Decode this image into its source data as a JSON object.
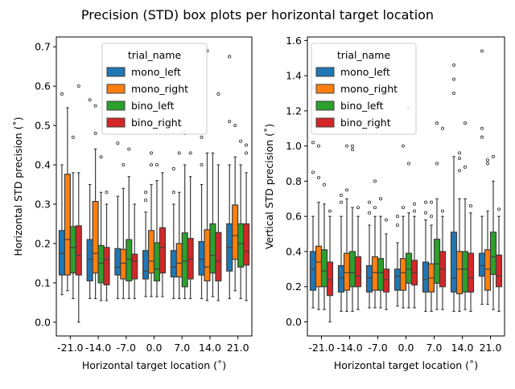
{
  "chart_data": {
    "title": "Precision (STD) box plots per horizontal target location",
    "type": "box",
    "legend": {
      "title": "trial_name",
      "placement": "top-center",
      "entries": [
        "mono_left",
        "mono_right",
        "bino_left",
        "bino_right"
      ]
    },
    "colors": {
      "mono_left": "#1f77b4",
      "mono_right": "#ff7f0e",
      "bino_left": "#2ca02c",
      "bino_right": "#d62728",
      "edge": "#3d3d3d"
    },
    "categories": [
      "-21.0",
      "-14.0",
      "-7.0",
      "0.0",
      "7.0",
      "14.0",
      "21.0"
    ],
    "panels": [
      {
        "ylabel": "Horizontal STD precision (˚)",
        "xlabel": "Horizontal target location (˚)",
        "ylim": [
          -0.035,
          0.725
        ],
        "yticks": [
          0.0,
          0.1,
          0.2,
          0.3,
          0.4,
          0.5,
          0.6,
          0.7
        ],
        "ytick_labels": [
          "0.0",
          "0.1",
          "0.2",
          "0.3",
          "0.4",
          "0.5",
          "0.6",
          "0.7"
        ],
        "series": [
          {
            "name": "mono_left",
            "boxes": [
              {
                "wlo": 0.07,
                "q1": 0.12,
                "med": 0.175,
                "q3": 0.233,
                "whi": 0.4,
                "out": [
                  0.58
                ]
              },
              {
                "wlo": 0.06,
                "q1": 0.105,
                "med": 0.16,
                "q3": 0.21,
                "whi": 0.35,
                "out": [
                  0.565
                ]
              },
              {
                "wlo": 0.06,
                "q1": 0.12,
                "med": 0.14,
                "q3": 0.187,
                "whi": 0.32,
                "out": [
                  0.455
                ]
              },
              {
                "wlo": 0.065,
                "q1": 0.11,
                "med": 0.13,
                "q3": 0.182,
                "whi": 0.28,
                "out": [
                  0.31,
                  0.33
                ]
              },
              {
                "wlo": 0.06,
                "q1": 0.115,
                "med": 0.14,
                "q3": 0.182,
                "whi": 0.3,
                "out": [
                  0.33,
                  0.39
                ]
              },
              {
                "wlo": 0.06,
                "q1": 0.12,
                "med": 0.16,
                "q3": 0.205,
                "whi": 0.35,
                "out": [
                  0.4,
                  0.47
                ]
              },
              {
                "wlo": 0.06,
                "q1": 0.13,
                "med": 0.19,
                "q3": 0.25,
                "whi": 0.4,
                "out": [
                  0.51,
                  0.675
                ]
              }
            ]
          },
          {
            "name": "mono_right",
            "boxes": [
              {
                "wlo": 0.08,
                "q1": 0.12,
                "med": 0.21,
                "q3": 0.376,
                "whi": 0.545,
                "out": []
              },
              {
                "wlo": 0.06,
                "q1": 0.125,
                "med": 0.175,
                "q3": 0.307,
                "whi": 0.44,
                "out": [
                  0.48,
                  0.55
                ]
              },
              {
                "wlo": 0.06,
                "q1": 0.11,
                "med": 0.15,
                "q3": 0.185,
                "whi": 0.34,
                "out": [
                  0.4
                ]
              },
              {
                "wlo": 0.065,
                "q1": 0.125,
                "med": 0.155,
                "q3": 0.233,
                "whi": 0.35,
                "out": [
                  0.4,
                  0.43
                ]
              },
              {
                "wlo": 0.06,
                "q1": 0.115,
                "med": 0.15,
                "q3": 0.2,
                "whi": 0.33,
                "out": [
                  0.43,
                  0.5
                ]
              },
              {
                "wlo": 0.055,
                "q1": 0.105,
                "med": 0.14,
                "q3": 0.235,
                "whi": 0.43,
                "out": [
                  0.69
                ]
              },
              {
                "wlo": 0.08,
                "q1": 0.16,
                "med": 0.22,
                "q3": 0.298,
                "whi": 0.42,
                "out": [
                  0.5
                ]
              }
            ]
          },
          {
            "name": "bino_left",
            "boxes": [
              {
                "wlo": 0.06,
                "q1": 0.125,
                "med": 0.19,
                "q3": 0.243,
                "whi": 0.38,
                "out": [
                  0.47
                ]
              },
              {
                "wlo": 0.055,
                "q1": 0.1,
                "med": 0.15,
                "q3": 0.195,
                "whi": 0.33,
                "out": [
                  0.42
                ]
              },
              {
                "wlo": 0.06,
                "q1": 0.105,
                "med": 0.16,
                "q3": 0.21,
                "whi": 0.37,
                "out": [
                  0.44
                ]
              },
              {
                "wlo": 0.065,
                "q1": 0.105,
                "med": 0.135,
                "q3": 0.202,
                "whi": 0.36,
                "out": [
                  0.4
                ]
              },
              {
                "wlo": 0.06,
                "q1": 0.09,
                "med": 0.155,
                "q3": 0.227,
                "whi": 0.4,
                "out": [
                  0.48
                ]
              },
              {
                "wlo": 0.065,
                "q1": 0.125,
                "med": 0.17,
                "q3": 0.25,
                "whi": 0.43,
                "out": []
              },
              {
                "wlo": 0.06,
                "q1": 0.14,
                "med": 0.2,
                "q3": 0.25,
                "whi": 0.4,
                "out": [
                  0.46
                ]
              }
            ]
          },
          {
            "name": "bino_right",
            "boxes": [
              {
                "wlo": 0.0,
                "q1": 0.12,
                "med": 0.17,
                "q3": 0.245,
                "whi": 0.38,
                "out": [
                  0.6
                ]
              },
              {
                "wlo": 0.055,
                "q1": 0.095,
                "med": 0.16,
                "q3": 0.19,
                "whi": 0.3,
                "out": [
                  0.33
                ]
              },
              {
                "wlo": 0.06,
                "q1": 0.11,
                "med": 0.155,
                "q3": 0.173,
                "whi": 0.3,
                "out": []
              },
              {
                "wlo": 0.065,
                "q1": 0.125,
                "med": 0.19,
                "q3": 0.24,
                "whi": 0.38,
                "out": []
              },
              {
                "wlo": 0.06,
                "q1": 0.11,
                "med": 0.16,
                "q3": 0.213,
                "whi": 0.37,
                "out": [
                  0.43
                ]
              },
              {
                "wlo": 0.055,
                "q1": 0.105,
                "med": 0.155,
                "q3": 0.228,
                "whi": 0.4,
                "out": [
                  0.58
                ]
              },
              {
                "wlo": 0.055,
                "q1": 0.145,
                "med": 0.18,
                "q3": 0.25,
                "whi": 0.38,
                "out": [
                  0.43,
                  0.45
                ]
              }
            ]
          }
        ]
      },
      {
        "ylabel": "Vertical STD precision (˚)",
        "xlabel": "Horizontal target location (˚)",
        "ylim": [
          -0.08,
          1.62
        ],
        "yticks": [
          0.0,
          0.2,
          0.4,
          0.6,
          0.8,
          1.0,
          1.2,
          1.4,
          1.6
        ],
        "ytick_labels": [
          "0.0",
          "0.2",
          "0.4",
          "0.6",
          "0.8",
          "1.0",
          "1.2",
          "1.4",
          "1.6"
        ],
        "series": [
          {
            "name": "mono_left",
            "boxes": [
              {
                "wlo": 0.08,
                "q1": 0.18,
                "med": 0.3,
                "q3": 0.4,
                "whi": 0.6,
                "out": [
                  0.85,
                  1.02,
                  1.33
                ]
              },
              {
                "wlo": 0.06,
                "q1": 0.17,
                "med": 0.25,
                "q3": 0.32,
                "whi": 0.6,
                "out": [
                  0.72,
                  0.68
                ]
              },
              {
                "wlo": 0.08,
                "q1": 0.17,
                "med": 0.25,
                "q3": 0.32,
                "whi": 0.55,
                "out": [
                  0.62,
                  0.68
                ]
              },
              {
                "wlo": 0.09,
                "q1": 0.18,
                "med": 0.26,
                "q3": 0.3,
                "whi": 0.45,
                "out": [
                  0.55,
                  0.6
                ]
              },
              {
                "wlo": 0.06,
                "q1": 0.17,
                "med": 0.24,
                "q3": 0.34,
                "whi": 0.58,
                "out": [
                  0.62,
                  0.68
                ]
              },
              {
                "wlo": 0.06,
                "q1": 0.17,
                "med": 0.25,
                "q3": 0.51,
                "whi": 0.94,
                "out": [
                  1.3,
                  1.38,
                  1.46
                ]
              },
              {
                "wlo": 0.1,
                "q1": 0.26,
                "med": 0.32,
                "q3": 0.39,
                "whi": 0.6,
                "out": [
                  1.05,
                  1.1,
                  1.54
                ]
              }
            ]
          },
          {
            "name": "mono_right",
            "boxes": [
              {
                "wlo": 0.07,
                "q1": 0.2,
                "med": 0.34,
                "q3": 0.43,
                "whi": 0.68,
                "out": [
                  0.82,
                  1.0
                ]
              },
              {
                "wlo": 0.06,
                "q1": 0.18,
                "med": 0.28,
                "q3": 0.39,
                "whi": 0.7,
                "out": [
                  0.75,
                  1.0
                ]
              },
              {
                "wlo": 0.08,
                "q1": 0.18,
                "med": 0.28,
                "q3": 0.37,
                "whi": 0.6,
                "out": [
                  0.65,
                  0.8
                ]
              },
              {
                "wlo": 0.08,
                "q1": 0.18,
                "med": 0.28,
                "q3": 0.36,
                "whi": 0.6,
                "out": [
                  0.65,
                  1.0
                ]
              },
              {
                "wlo": 0.06,
                "q1": 0.17,
                "med": 0.25,
                "q3": 0.33,
                "whi": 0.55,
                "out": [
                  0.6,
                  0.68
                ]
              },
              {
                "wlo": 0.06,
                "q1": 0.16,
                "med": 0.3,
                "q3": 0.4,
                "whi": 0.7,
                "out": [
                  0.86,
                  0.93,
                  0.96
                ]
              },
              {
                "wlo": 0.1,
                "q1": 0.18,
                "med": 0.3,
                "q3": 0.41,
                "whi": 0.63,
                "out": [
                  0.9,
                  0.92
                ]
              }
            ]
          },
          {
            "name": "bino_left",
            "boxes": [
              {
                "wlo": 0.07,
                "q1": 0.2,
                "med": 0.29,
                "q3": 0.41,
                "whi": 0.67,
                "out": [
                  0.78
                ]
              },
              {
                "wlo": 0.06,
                "q1": 0.2,
                "med": 0.28,
                "q3": 0.4,
                "whi": 0.65,
                "out": [
                  0.98,
                  1.0
                ]
              },
              {
                "wlo": 0.08,
                "q1": 0.18,
                "med": 0.28,
                "q3": 0.36,
                "whi": 0.6,
                "out": [
                  0.7
                ]
              },
              {
                "wlo": 0.08,
                "q1": 0.22,
                "med": 0.3,
                "q3": 0.39,
                "whi": 0.62,
                "out": [
                  0.9,
                  1.22
                ]
              },
              {
                "wlo": 0.07,
                "q1": 0.22,
                "med": 0.33,
                "q3": 0.47,
                "whi": 0.7,
                "out": [
                  0.9,
                  1.13
                ]
              },
              {
                "wlo": 0.07,
                "q1": 0.17,
                "med": 0.3,
                "q3": 0.4,
                "whi": 0.7,
                "out": [
                  0.88,
                  1.13
                ]
              },
              {
                "wlo": 0.07,
                "q1": 0.27,
                "med": 0.37,
                "q3": 0.51,
                "whi": 0.8,
                "out": [
                  0.94
                ]
              }
            ]
          },
          {
            "name": "bino_right",
            "boxes": [
              {
                "wlo": 0.0,
                "q1": 0.15,
                "med": 0.24,
                "q3": 0.34,
                "whi": 0.6,
                "out": [
                  0.63
                ]
              },
              {
                "wlo": 0.07,
                "q1": 0.2,
                "med": 0.26,
                "q3": 0.37,
                "whi": 0.6,
                "out": [
                  0.65
                ]
              },
              {
                "wlo": 0.07,
                "q1": 0.17,
                "med": 0.24,
                "q3": 0.3,
                "whi": 0.5,
                "out": [
                  0.58
                ]
              },
              {
                "wlo": 0.08,
                "q1": 0.21,
                "med": 0.28,
                "q3": 0.35,
                "whi": 0.6,
                "out": [
                  0.63,
                  0.67
                ]
              },
              {
                "wlo": 0.07,
                "q1": 0.2,
                "med": 0.3,
                "q3": 0.4,
                "whi": 0.6,
                "out": [
                  0.63,
                  1.1
                ]
              },
              {
                "wlo": 0.06,
                "q1": 0.17,
                "med": 0.25,
                "q3": 0.39,
                "whi": 0.62,
                "out": [
                  0.66
                ]
              },
              {
                "wlo": 0.06,
                "q1": 0.2,
                "med": 0.26,
                "q3": 0.38,
                "whi": 0.6,
                "out": [
                  0.64
                ]
              }
            ]
          }
        ]
      }
    ]
  }
}
